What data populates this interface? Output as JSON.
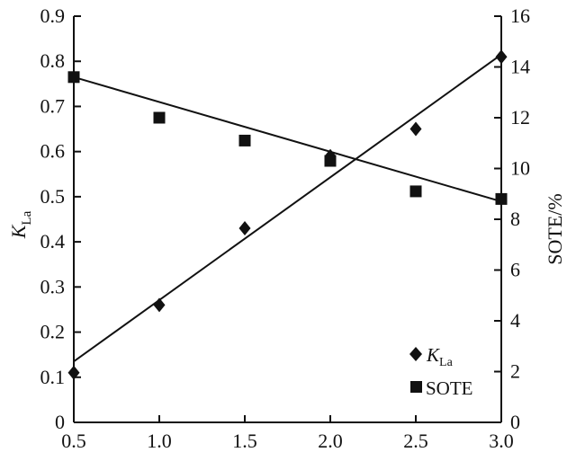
{
  "chart_data": {
    "type": "scatter",
    "title": "",
    "xlabel": "",
    "ylabel_left": "K_La",
    "ylabel_left_parts": {
      "main": "K",
      "sub": "La"
    },
    "ylabel_right": "SOTE/%",
    "xlim": [
      0.5,
      3.0
    ],
    "ylim_left": [
      0,
      0.9
    ],
    "ylim_right": [
      0,
      16
    ],
    "x_ticks": [
      "0.5",
      "1.0",
      "1.5",
      "2.0",
      "2.5",
      "3.0"
    ],
    "y_left_ticks": [
      "0",
      "0.1",
      "0.2",
      "0.3",
      "0.4",
      "0.5",
      "0.6",
      "0.7",
      "0.8",
      "0.9"
    ],
    "y_right_ticks": [
      "0",
      "2",
      "4",
      "6",
      "8",
      "10",
      "12",
      "14",
      "16"
    ],
    "grid": false,
    "legend_position": "bottom-right",
    "series": [
      {
        "name": "K_La",
        "name_parts": {
          "main": "K",
          "sub": "La"
        },
        "axis": "left",
        "marker": "diamond",
        "x": [
          0.5,
          1.0,
          1.5,
          2.0,
          2.5,
          3.0
        ],
        "y": [
          0.11,
          0.26,
          0.43,
          0.59,
          0.65,
          0.81
        ],
        "fit_line": [
          [
            0.5,
            0.135
          ],
          [
            3.0,
            0.815
          ]
        ]
      },
      {
        "name": "SOTE",
        "axis": "right",
        "marker": "square",
        "x": [
          0.5,
          1.0,
          1.5,
          2.0,
          2.5,
          3.0
        ],
        "y": [
          13.6,
          12.0,
          11.1,
          10.3,
          9.1,
          8.8
        ],
        "fit_line": [
          [
            0.5,
            13.6
          ],
          [
            3.0,
            8.7
          ]
        ]
      }
    ]
  }
}
